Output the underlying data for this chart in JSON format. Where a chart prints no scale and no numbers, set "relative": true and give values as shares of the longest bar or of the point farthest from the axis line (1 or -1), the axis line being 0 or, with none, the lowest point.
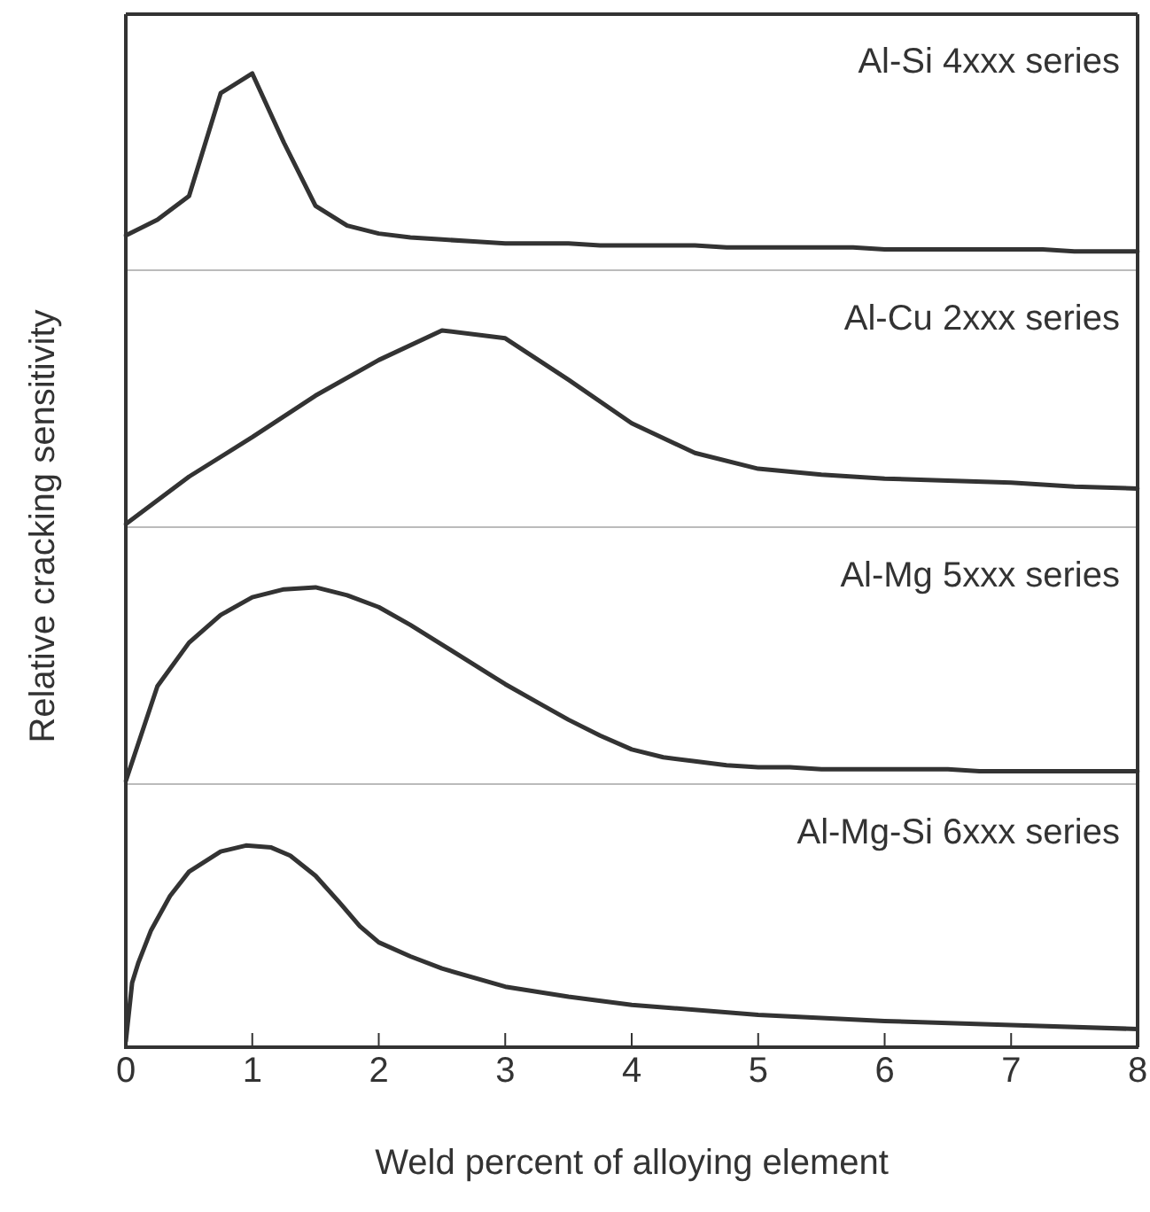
{
  "chart_data": [
    {
      "type": "line",
      "relative": true,
      "ylabel": "Relative cracking sensitivity",
      "tick_labels": false,
      "legend": false,
      "marker": "none",
      "line_style": "solid",
      "categories": [
        null,
        null,
        null,
        null,
        null,
        null,
        null,
        null,
        null,
        null,
        null,
        null,
        null,
        null,
        null,
        null,
        null,
        null,
        null,
        null,
        null,
        null,
        null,
        null,
        null,
        null,
        null,
        null,
        null,
        null,
        null,
        null,
        null
      ],
      "series": [
        {
          "name": "Al-Si 4xxx series",
          "color": "#333333",
          "values": [
            0.18,
            0.26,
            0.38,
            0.9,
            1,
            0.65,
            0.33,
            0.23,
            0.19,
            0.17,
            0.16,
            0.15,
            0.14,
            0.14,
            0.14,
            0.13,
            0.13,
            0.13,
            0.13,
            0.12,
            0.12,
            0.12,
            0.12,
            0.12,
            0.11,
            0.11,
            0.11,
            0.11,
            0.11,
            0.11,
            0.1,
            0.1,
            0.1
          ]
        }
      ]
    },
    {
      "type": "line",
      "relative": true,
      "tick_labels": false,
      "legend": false,
      "marker": "none",
      "line_style": "solid",
      "categories": [
        null,
        null,
        null,
        null,
        null,
        null,
        null,
        null,
        null,
        null,
        null,
        null,
        null,
        null,
        null,
        null,
        null
      ],
      "series": [
        {
          "name": "Al-Cu 2xxx series",
          "color": "#333333",
          "values": [
            0.02,
            0.26,
            0.46,
            0.67,
            0.85,
            1,
            0.96,
            0.75,
            0.53,
            0.38,
            0.3,
            0.27,
            0.25,
            0.24,
            0.23,
            0.21,
            0.2
          ]
        }
      ]
    },
    {
      "type": "line",
      "relative": true,
      "tick_labels": false,
      "legend": false,
      "marker": "none",
      "line_style": "solid",
      "categories": [
        null,
        null,
        null,
        null,
        null,
        null,
        null,
        null,
        null,
        null,
        null,
        null,
        null,
        null,
        null,
        null,
        null,
        null,
        null,
        null,
        null,
        null,
        null,
        null,
        null,
        null,
        null,
        null,
        null,
        null,
        null,
        null,
        null
      ],
      "series": [
        {
          "name": "Al-Mg 5xxx series",
          "color": "#333333",
          "values": [
            0.02,
            0.5,
            0.72,
            0.86,
            0.95,
            0.99,
            1,
            0.96,
            0.9,
            0.81,
            0.71,
            0.61,
            0.51,
            0.42,
            0.33,
            0.25,
            0.18,
            0.14,
            0.12,
            0.1,
            0.09,
            0.09,
            0.08,
            0.08,
            0.08,
            0.08,
            0.08,
            0.07,
            0.07,
            0.07,
            0.07,
            0.07,
            0.07
          ]
        }
      ]
    },
    {
      "type": "line",
      "relative": true,
      "xlabel": "Weld percent of alloying element",
      "xlim": [
        0,
        8
      ],
      "xticks": [
        0,
        1,
        2,
        3,
        4,
        5,
        6,
        7,
        8
      ],
      "tick_labels": "x",
      "legend": false,
      "marker": "none",
      "line_style": "solid",
      "series": [
        {
          "name": "Al-Mg-Si 6xxx series",
          "color": "#333333",
          "x": [
            0,
            0.05,
            0.1,
            0.2,
            0.35,
            0.5,
            0.75,
            0.95,
            1.15,
            1.3,
            1.5,
            1.7,
            1.85,
            2,
            2.25,
            2.5,
            3,
            3.5,
            4,
            5,
            6,
            7,
            8
          ],
          "values": [
            0.03,
            0.32,
            0.42,
            0.58,
            0.75,
            0.87,
            0.97,
            1,
            0.99,
            0.95,
            0.85,
            0.71,
            0.6,
            0.52,
            0.45,
            0.39,
            0.3,
            0.25,
            0.21,
            0.16,
            0.13,
            0.11,
            0.09
          ]
        }
      ]
    }
  ]
}
